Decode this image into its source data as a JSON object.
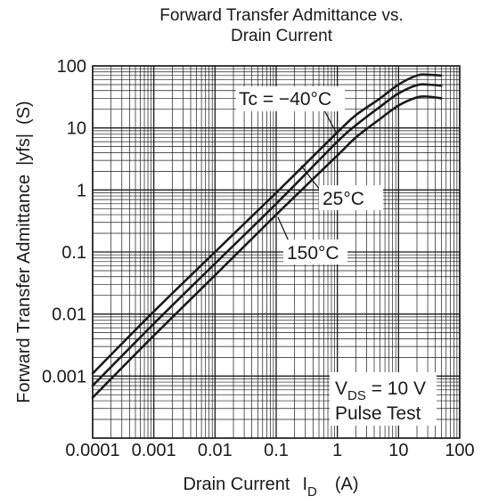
{
  "chart_data": {
    "type": "line",
    "title": [
      "Forward Transfer Admittance vs.",
      "Drain Current"
    ],
    "xlabel": "Drain Current",
    "xlabel_symbol": "I",
    "xlabel_subscript": "D",
    "xlabel_unit": "(A)",
    "ylabel": "Forward Transfer Admittance",
    "ylabel_symbol": "|yfs|",
    "ylabel_unit": "(S)",
    "x_scale": "log",
    "y_scale": "log",
    "xlim": [
      0.0001,
      100
    ],
    "ylim": [
      0.0001,
      100
    ],
    "grid": true,
    "x_ticks": [
      {
        "value": 0.0001,
        "label": "0.0001"
      },
      {
        "value": 0.001,
        "label": "0.001"
      },
      {
        "value": 0.01,
        "label": "0.01"
      },
      {
        "value": 0.1,
        "label": "0.1"
      },
      {
        "value": 1,
        "label": "1"
      },
      {
        "value": 10,
        "label": "10"
      },
      {
        "value": 100,
        "label": "100"
      }
    ],
    "y_ticks": [
      {
        "value": 0.001,
        "label": "0.001"
      },
      {
        "value": 0.01,
        "label": "0.01"
      },
      {
        "value": 0.1,
        "label": "0.1"
      },
      {
        "value": 1,
        "label": "1"
      },
      {
        "value": 10,
        "label": "10"
      },
      {
        "value": 100,
        "label": "100"
      }
    ],
    "series": [
      {
        "name": "Tc = −40°C",
        "x": [
          0.0001,
          0.001,
          0.01,
          0.1,
          1,
          2,
          5,
          10,
          20,
          30,
          50
        ],
        "y": [
          0.0011,
          0.011,
          0.1,
          0.9,
          8.5,
          16,
          30,
          50,
          70,
          72,
          70
        ]
      },
      {
        "name": "25°C",
        "x": [
          0.0001,
          0.001,
          0.01,
          0.1,
          1,
          2,
          5,
          10,
          20,
          30,
          50
        ],
        "y": [
          0.0007,
          0.007,
          0.065,
          0.6,
          6,
          11,
          22,
          36,
          49,
          50,
          48
        ]
      },
      {
        "name": "150°C",
        "x": [
          0.0001,
          0.001,
          0.01,
          0.1,
          1,
          2,
          5,
          10,
          20,
          30,
          50
        ],
        "y": [
          0.00045,
          0.0045,
          0.042,
          0.4,
          3.6,
          7,
          14,
          23,
          31,
          32,
          30
        ]
      }
    ],
    "annotations": {
      "vds_prefix": "V",
      "vds_subscript": "DS",
      "vds_value": " = 10 V",
      "pulse": "Pulse Test"
    }
  }
}
